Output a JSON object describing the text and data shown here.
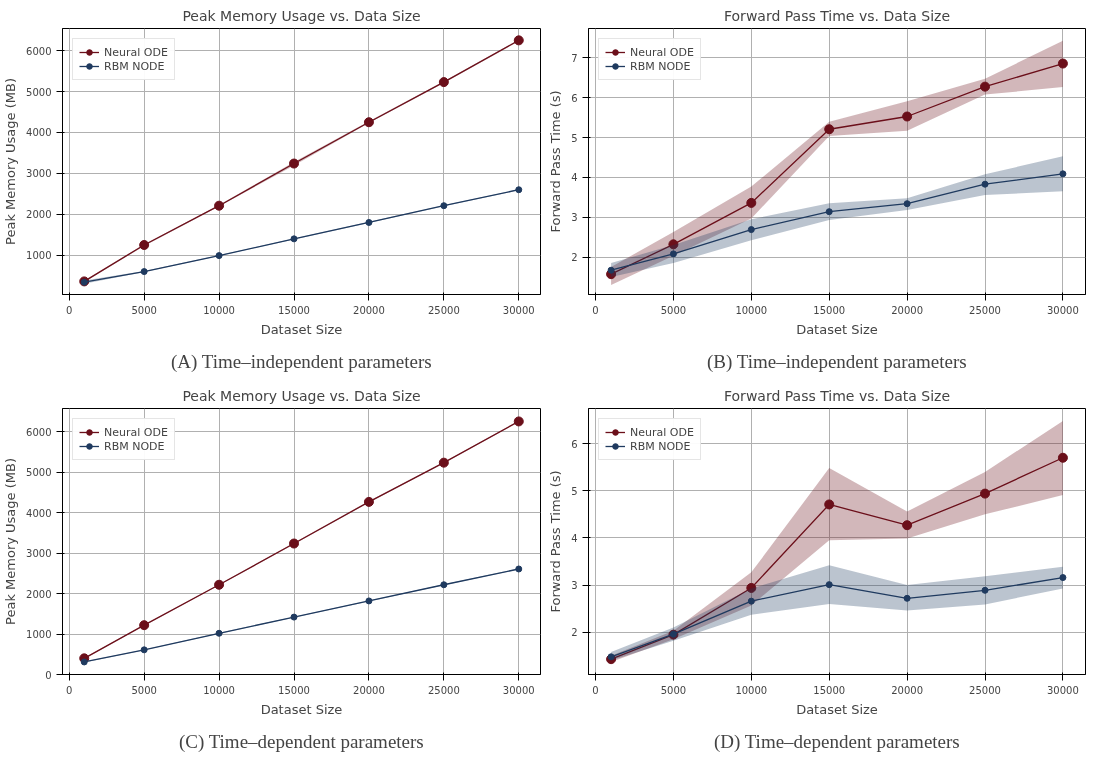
{
  "chart_data": [
    {
      "type": "line",
      "title": "Peak Memory Usage vs. Data Size",
      "xlabel": "Dataset Size",
      "ylabel": "Peak Memory Usage (MB)",
      "annotations": [
        "(A) Time–independent parameters"
      ],
      "x": [
        1000,
        5000,
        10000,
        15000,
        20000,
        25000,
        30000
      ],
      "series": [
        {
          "name": "Neural ODE",
          "color": "#6b0f1a",
          "values": [
            360,
            1250,
            2210,
            3240,
            4250,
            5230,
            6250
          ],
          "lower": [
            340,
            1228,
            2190,
            3195,
            4233,
            5210,
            6228
          ],
          "upper": [
            385,
            1268,
            2228,
            3275,
            4273,
            5250,
            6268
          ]
        },
        {
          "name": "RBM NODE",
          "color": "#1f3a5f",
          "values": [
            340,
            600,
            990,
            1400,
            1800,
            2210,
            2600
          ],
          "lower": [
            300,
            590,
            980,
            1385,
            1790,
            2196,
            2585
          ],
          "upper": [
            380,
            616,
            1004,
            1409,
            1816,
            2222,
            2611
          ]
        }
      ],
      "xlim": [
        -450,
        31450
      ],
      "ylim": [
        40,
        6540
      ],
      "xticks": [
        0,
        5000,
        10000,
        15000,
        20000,
        25000,
        30000
      ],
      "yticks": [
        1000,
        2000,
        3000,
        4000,
        5000,
        6000
      ],
      "grid": true,
      "legend": "top left",
      "marker": "circle"
    },
    {
      "type": "line",
      "title": "Forward Pass Time vs. Data Size",
      "xlabel": "Dataset Size",
      "ylabel": "Forward Pass Time (s)",
      "annotations": [
        "(B) Time–independent parameters"
      ],
      "x": [
        1000,
        5000,
        10000,
        15000,
        20000,
        25000,
        30000
      ],
      "series": [
        {
          "name": "Neural ODE",
          "color": "#6b0f1a",
          "values": [
            1.57,
            2.32,
            3.36,
            5.21,
            5.53,
            6.28,
            6.86
          ],
          "lower": [
            1.3,
            2.03,
            2.97,
            5.04,
            5.17,
            6.08,
            6.27
          ],
          "upper": [
            1.75,
            2.63,
            3.77,
            5.4,
            5.91,
            6.48,
            7.43
          ]
        },
        {
          "name": "RBM NODE",
          "color": "#1f3a5f",
          "values": [
            1.67,
            2.08,
            2.69,
            3.14,
            3.34,
            3.83,
            4.09
          ],
          "lower": [
            1.5,
            1.85,
            2.42,
            2.93,
            3.18,
            3.56,
            3.65
          ],
          "upper": [
            1.85,
            2.3,
            2.95,
            3.35,
            3.48,
            4.08,
            4.53
          ]
        }
      ],
      "xlim": [
        -450,
        31450
      ],
      "ylim": [
        1.06,
        7.74
      ],
      "xticks": [
        0,
        5000,
        10000,
        15000,
        20000,
        25000,
        30000
      ],
      "yticks": [
        2,
        3,
        4,
        5,
        6,
        7
      ],
      "grid": true,
      "legend": "top left",
      "marker": "circle"
    },
    {
      "type": "line",
      "title": "Peak Memory Usage vs. Data Size",
      "xlabel": "Dataset Size",
      "ylabel": "Peak Memory Usage (MB)",
      "annotations": [
        "(C) Time–dependent parameters"
      ],
      "x": [
        1000,
        5000,
        10000,
        15000,
        20000,
        25000,
        30000
      ],
      "series": [
        {
          "name": "Neural ODE",
          "color": "#6b0f1a",
          "values": [
            400,
            1220,
            2220,
            3240,
            4270,
            5240,
            6260
          ],
          "lower": [
            385,
            1205,
            2205,
            3220,
            4255,
            5228,
            6245
          ],
          "upper": [
            415,
            1233,
            2235,
            3258,
            4293,
            5256,
            6275
          ]
        },
        {
          "name": "RBM NODE",
          "color": "#1f3a5f",
          "values": [
            310,
            610,
            1020,
            1420,
            1820,
            2220,
            2610
          ],
          "lower": [
            296,
            597,
            1006,
            1407,
            1808,
            2208,
            2601
          ],
          "upper": [
            322,
            621,
            1030,
            1431,
            1832,
            2232,
            2625
          ]
        }
      ],
      "xlim": [
        -450,
        31450
      ],
      "ylim": [
        0,
        6580
      ],
      "xticks": [
        0,
        5000,
        10000,
        15000,
        20000,
        25000,
        30000
      ],
      "yticks": [
        0,
        1000,
        2000,
        3000,
        4000,
        5000,
        6000
      ],
      "grid": true,
      "legend": "top left",
      "marker": "circle"
    },
    {
      "type": "line",
      "title": "Forward Pass Time vs. Data Size",
      "xlabel": "Dataset Size",
      "ylabel": "Forward Pass Time (s)",
      "annotations": [
        "(D) Time–dependent parameters"
      ],
      "x": [
        1000,
        5000,
        10000,
        15000,
        20000,
        25000,
        30000
      ],
      "series": [
        {
          "name": "Neural ODE",
          "color": "#6b0f1a",
          "values": [
            1.43,
            1.95,
            2.94,
            4.71,
            4.27,
            4.94,
            5.7
          ],
          "lower": [
            1.37,
            1.85,
            2.57,
            3.95,
            3.99,
            4.5,
            4.91
          ],
          "upper": [
            1.5,
            2.03,
            3.27,
            5.48,
            4.56,
            5.4,
            6.48
          ]
        },
        {
          "name": "RBM NODE",
          "color": "#1f3a5f",
          "values": [
            1.48,
            1.96,
            2.66,
            3.01,
            2.72,
            2.89,
            3.16
          ],
          "lower": [
            1.4,
            1.82,
            2.37,
            2.6,
            2.46,
            2.59,
            2.93
          ],
          "upper": [
            1.58,
            2.1,
            2.93,
            3.42,
            3.0,
            3.19,
            3.39
          ]
        }
      ],
      "xlim": [
        -450,
        31450
      ],
      "ylim": [
        1.105,
        6.744
      ],
      "xticks": [
        0,
        5000,
        10000,
        15000,
        20000,
        25000,
        30000
      ],
      "yticks": [
        2,
        3,
        4,
        5,
        6
      ],
      "grid": true,
      "legend": "top left",
      "marker": "circle"
    }
  ]
}
